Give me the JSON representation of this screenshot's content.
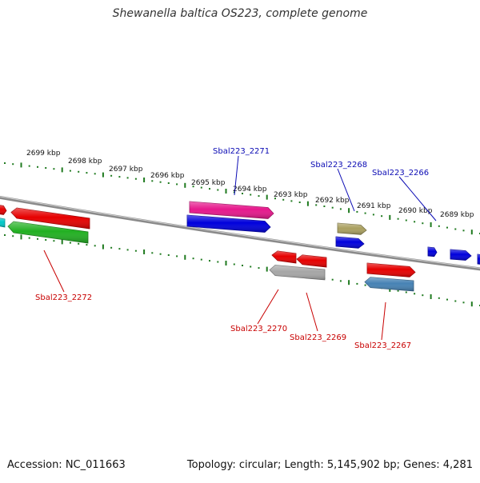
{
  "title": "Shewanella baltica OS223, complete genome",
  "accession": "Accession: NC_011663",
  "summary": "Topology: circular; Length: 5,145,902 bp; Genes: 4,281",
  "colors": {
    "backbone": "#8a8a8a",
    "dots": "#1f7a1f",
    "top_label": "#0a0ab4",
    "bottom_label": "#c80000"
  },
  "ticks": [
    {
      "label": "2699 kbp"
    },
    {
      "label": "2698 kbp"
    },
    {
      "label": "2697 kbp"
    },
    {
      "label": "2696 kbp"
    },
    {
      "label": "2695 kbp"
    },
    {
      "label": "2694 kbp"
    },
    {
      "label": "2693 kbp"
    },
    {
      "label": "2692 kbp"
    },
    {
      "label": "2691 kbp"
    },
    {
      "label": "2690 kbp"
    },
    {
      "label": "2689 kbp"
    }
  ],
  "labels": {
    "top": [
      {
        "text": "Sbal223_2271"
      },
      {
        "text": "Sbal223_2268"
      },
      {
        "text": "Sbal223_2266"
      }
    ],
    "bottom": [
      {
        "text": "Sbal223_2272"
      },
      {
        "text": "Sbal223_2270"
      },
      {
        "text": "Sbal223_2269"
      },
      {
        "text": "Sbal223_2267"
      }
    ]
  },
  "genes": [
    {
      "color": "#e60000",
      "strand": "+"
    },
    {
      "color": "#e60000",
      "strand": "-"
    },
    {
      "color": "#22b022",
      "strand": "-"
    },
    {
      "color": "#00c8c8",
      "strand": "-"
    },
    {
      "color": "#e6188c",
      "strand": "+"
    },
    {
      "color": "#0000dc",
      "strand": "+"
    },
    {
      "color": "#e60000",
      "strand": "-"
    },
    {
      "color": "#e60000",
      "strand": "-"
    },
    {
      "color": "#a6a6a6",
      "strand": "-"
    },
    {
      "color": "#aaa060",
      "strand": "+"
    },
    {
      "color": "#0000dc",
      "strand": "+"
    },
    {
      "color": "#e60000",
      "strand": "+"
    },
    {
      "color": "#4682b4",
      "strand": "-"
    },
    {
      "color": "#0000dc",
      "strand": "+"
    },
    {
      "color": "#0000dc",
      "strand": "+"
    },
    {
      "color": "#0000dc",
      "strand": "+"
    }
  ]
}
